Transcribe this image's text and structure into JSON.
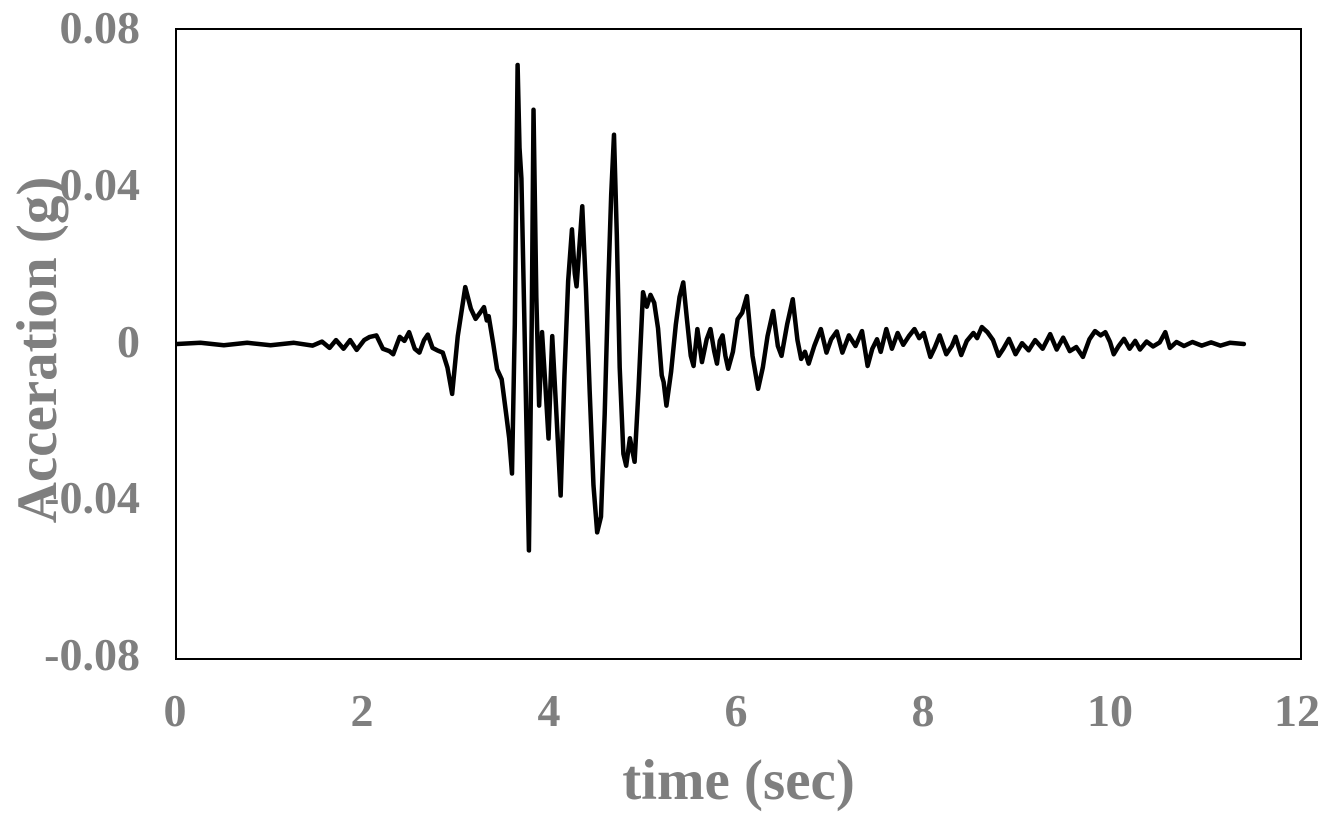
{
  "colors": {
    "background": "#ffffff",
    "line": "#000000",
    "plot_border": "#000000",
    "axis_text": "#7f7f7f"
  },
  "chart_data": {
    "type": "line",
    "title": "",
    "xlabel": "time (sec)",
    "ylabel": "Acceration (g)",
    "xlim": [
      0,
      12
    ],
    "ylim": [
      -0.08,
      0.08
    ],
    "grid": false,
    "legend_position": "none",
    "x_ticks": [
      {
        "value": 0,
        "label": "0"
      },
      {
        "value": 2,
        "label": "2"
      },
      {
        "value": 4,
        "label": "4"
      },
      {
        "value": 6,
        "label": "6"
      },
      {
        "value": 8,
        "label": "8"
      },
      {
        "value": 10,
        "label": "10"
      },
      {
        "value": 12,
        "label": "12"
      }
    ],
    "y_ticks": [
      {
        "value": 0.08,
        "label": "0.08"
      },
      {
        "value": 0.04,
        "label": "0.04"
      },
      {
        "value": 0,
        "label": "0"
      },
      {
        "value": -0.04,
        "label": "-0.04"
      },
      {
        "value": -0.08,
        "label": "-0.08"
      }
    ],
    "series": [
      {
        "name": "acceleration",
        "peak_acceleration_g": 0.071,
        "points": [
          [
            0.0,
            0.0
          ],
          [
            0.25,
            0.0003
          ],
          [
            0.5,
            -0.0003
          ],
          [
            0.75,
            0.0003
          ],
          [
            1.0,
            -0.0003
          ],
          [
            1.25,
            0.0003
          ],
          [
            1.45,
            -0.0004
          ],
          [
            1.55,
            0.0006
          ],
          [
            1.63,
            -0.001
          ],
          [
            1.7,
            0.001
          ],
          [
            1.78,
            -0.0012
          ],
          [
            1.85,
            0.001
          ],
          [
            1.92,
            -0.0015
          ],
          [
            2.0,
            0.001
          ],
          [
            2.06,
            0.0018
          ],
          [
            2.13,
            0.0022
          ],
          [
            2.2,
            -0.0012
          ],
          [
            2.27,
            -0.0018
          ],
          [
            2.31,
            -0.0026
          ],
          [
            2.38,
            0.0018
          ],
          [
            2.43,
            0.0008
          ],
          [
            2.48,
            0.003
          ],
          [
            2.54,
            -0.0012
          ],
          [
            2.59,
            -0.0022
          ],
          [
            2.64,
            0.001
          ],
          [
            2.68,
            0.0024
          ],
          [
            2.73,
            -0.001
          ],
          [
            2.78,
            -0.0016
          ],
          [
            2.84,
            -0.0022
          ],
          [
            2.89,
            -0.006
          ],
          [
            2.94,
            -0.0127
          ],
          [
            3.0,
            0.002
          ],
          [
            3.08,
            0.0145
          ],
          [
            3.14,
            0.009
          ],
          [
            3.19,
            0.0064
          ],
          [
            3.24,
            0.008
          ],
          [
            3.28,
            0.0094
          ],
          [
            3.31,
            0.006
          ],
          [
            3.33,
            0.0071
          ],
          [
            3.38,
            0.0
          ],
          [
            3.42,
            -0.0064
          ],
          [
            3.47,
            -0.009
          ],
          [
            3.52,
            -0.0183
          ],
          [
            3.55,
            -0.024
          ],
          [
            3.58,
            -0.033
          ],
          [
            3.61,
            0.005
          ],
          [
            3.64,
            0.0711
          ],
          [
            3.66,
            0.05
          ],
          [
            3.68,
            0.0422
          ],
          [
            3.71,
            0.008
          ],
          [
            3.74,
            -0.028
          ],
          [
            3.76,
            -0.0526
          ],
          [
            3.79,
            0.005
          ],
          [
            3.81,
            0.0597
          ],
          [
            3.84,
            0.012
          ],
          [
            3.87,
            -0.0157
          ],
          [
            3.9,
            0.003
          ],
          [
            3.94,
            -0.012
          ],
          [
            3.97,
            -0.0241
          ],
          [
            4.01,
            0.002
          ],
          [
            4.05,
            -0.016
          ],
          [
            4.1,
            -0.0386
          ],
          [
            4.14,
            -0.008
          ],
          [
            4.18,
            0.016
          ],
          [
            4.22,
            0.0292
          ],
          [
            4.25,
            0.018
          ],
          [
            4.27,
            0.0147
          ],
          [
            4.3,
            0.025
          ],
          [
            4.33,
            0.0351
          ],
          [
            4.37,
            0.014
          ],
          [
            4.41,
            -0.012
          ],
          [
            4.45,
            -0.036
          ],
          [
            4.49,
            -0.048
          ],
          [
            4.53,
            -0.044
          ],
          [
            4.57,
            -0.018
          ],
          [
            4.61,
            0.016
          ],
          [
            4.64,
            0.038
          ],
          [
            4.67,
            0.0533
          ],
          [
            4.7,
            0.028
          ],
          [
            4.73,
            -0.006
          ],
          [
            4.77,
            -0.028
          ],
          [
            4.8,
            -0.031
          ],
          [
            4.84,
            -0.024
          ],
          [
            4.89,
            -0.03
          ],
          [
            4.93,
            -0.012
          ],
          [
            4.98,
            0.0132
          ],
          [
            5.02,
            0.0095
          ],
          [
            5.06,
            0.0125
          ],
          [
            5.1,
            0.0105
          ],
          [
            5.14,
            0.004
          ],
          [
            5.18,
            -0.008
          ],
          [
            5.2,
            -0.0097
          ],
          [
            5.23,
            -0.0157
          ],
          [
            5.28,
            -0.007
          ],
          [
            5.33,
            0.005
          ],
          [
            5.37,
            0.012
          ],
          [
            5.41,
            0.0157
          ],
          [
            5.45,
            0.006
          ],
          [
            5.49,
            -0.003
          ],
          [
            5.52,
            -0.0056
          ],
          [
            5.56,
            0.0038
          ],
          [
            5.61,
            -0.0046
          ],
          [
            5.66,
            0.0012
          ],
          [
            5.7,
            0.0038
          ],
          [
            5.74,
            -0.0018
          ],
          [
            5.77,
            -0.005
          ],
          [
            5.8,
            0.0008
          ],
          [
            5.83,
            0.0022
          ],
          [
            5.86,
            -0.003
          ],
          [
            5.89,
            -0.0063
          ],
          [
            5.94,
            -0.002
          ],
          [
            5.99,
            0.0063
          ],
          [
            6.04,
            0.008
          ],
          [
            6.09,
            0.0122
          ],
          [
            6.15,
            -0.003
          ],
          [
            6.21,
            -0.0114
          ],
          [
            6.26,
            -0.006
          ],
          [
            6.31,
            0.002
          ],
          [
            6.37,
            0.0084
          ],
          [
            6.42,
            -0.0005
          ],
          [
            6.46,
            -0.003
          ],
          [
            6.52,
            0.005
          ],
          [
            6.58,
            0.0114
          ],
          [
            6.63,
            0.001
          ],
          [
            6.67,
            -0.0038
          ],
          [
            6.71,
            -0.002
          ],
          [
            6.75,
            -0.005
          ],
          [
            6.81,
            -0.0005
          ],
          [
            6.88,
            0.0038
          ],
          [
            6.94,
            -0.0022
          ],
          [
            6.99,
            0.0012
          ],
          [
            7.05,
            0.0032
          ],
          [
            7.11,
            -0.0022
          ],
          [
            7.18,
            0.0022
          ],
          [
            7.25,
            -0.0005
          ],
          [
            7.32,
            0.0033
          ],
          [
            7.38,
            -0.0056
          ],
          [
            7.43,
            -0.0012
          ],
          [
            7.48,
            0.0012
          ],
          [
            7.52,
            -0.002
          ],
          [
            7.58,
            0.0038
          ],
          [
            7.64,
            -0.0012
          ],
          [
            7.7,
            0.0028
          ],
          [
            7.76,
            -0.0002
          ],
          [
            7.82,
            0.002
          ],
          [
            7.88,
            0.0038
          ],
          [
            7.93,
            0.0015
          ],
          [
            7.98,
            0.0028
          ],
          [
            8.05,
            -0.0033
          ],
          [
            8.1,
            -0.0008
          ],
          [
            8.15,
            0.0022
          ],
          [
            8.22,
            -0.0026
          ],
          [
            8.28,
            -0.0005
          ],
          [
            8.32,
            0.0018
          ],
          [
            8.38,
            -0.0028
          ],
          [
            8.44,
            0.0008
          ],
          [
            8.51,
            0.0028
          ],
          [
            8.55,
            0.0015
          ],
          [
            8.6,
            0.0043
          ],
          [
            8.66,
            0.003
          ],
          [
            8.72,
            0.001
          ],
          [
            8.78,
            -0.003
          ],
          [
            8.83,
            -0.0012
          ],
          [
            8.89,
            0.0013
          ],
          [
            8.96,
            -0.0026
          ],
          [
            9.03,
            0.0002
          ],
          [
            9.1,
            -0.0016
          ],
          [
            9.17,
            0.001
          ],
          [
            9.25,
            -0.0012
          ],
          [
            9.33,
            0.0025
          ],
          [
            9.4,
            -0.0014
          ],
          [
            9.47,
            0.0016
          ],
          [
            9.54,
            -0.0018
          ],
          [
            9.61,
            -0.0008
          ],
          [
            9.68,
            -0.0033
          ],
          [
            9.75,
            0.0012
          ],
          [
            9.81,
            0.0033
          ],
          [
            9.87,
            0.0022
          ],
          [
            9.92,
            0.003
          ],
          [
            9.97,
            0.0005
          ],
          [
            10.01,
            -0.0026
          ],
          [
            10.06,
            -0.0006
          ],
          [
            10.12,
            0.0013
          ],
          [
            10.18,
            -0.0012
          ],
          [
            10.24,
            0.0008
          ],
          [
            10.29,
            -0.0014
          ],
          [
            10.36,
            0.0006
          ],
          [
            10.43,
            -0.0006
          ],
          [
            10.5,
            0.0004
          ],
          [
            10.56,
            0.003
          ],
          [
            10.61,
            -0.001
          ],
          [
            10.68,
            0.0005
          ],
          [
            10.76,
            -0.0005
          ],
          [
            10.85,
            0.0005
          ],
          [
            10.95,
            -0.0004
          ],
          [
            11.05,
            0.0004
          ],
          [
            11.15,
            -0.0004
          ],
          [
            11.25,
            0.0003
          ],
          [
            11.4,
            0.0
          ]
        ]
      }
    ]
  }
}
